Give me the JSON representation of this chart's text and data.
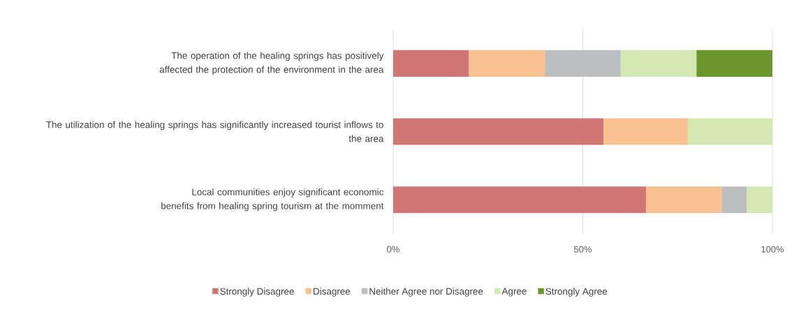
{
  "chart_data": {
    "type": "bar",
    "orientation": "horizontal",
    "stacked": true,
    "categories": [
      "The operation of the healing springs has positively affected the protection of the environment in the area",
      "The utilization of the healing springs has significantly increased tourist inflows to the area",
      "Local communities enjoy significant economic benefits from healing spring tourism at the momment"
    ],
    "series": [
      {
        "name": "Strongly Disagree",
        "color": "#d07674",
        "values": [
          20,
          55.5,
          66.7
        ]
      },
      {
        "name": "Disagree",
        "color": "#f9c090",
        "values": [
          20,
          22.2,
          20
        ]
      },
      {
        "name": "Neither Agree nor Disagree",
        "color": "#bdbec0",
        "values": [
          20,
          null,
          6.6
        ]
      },
      {
        "name": "Agree",
        "color": "#d3e8b3",
        "values": [
          20,
          22.3,
          6.7
        ]
      },
      {
        "name": "Strongly Agree",
        "color": "#6a962c",
        "values": [
          20,
          null,
          null
        ]
      }
    ],
    "xlim": [
      0,
      100
    ],
    "xticks": [
      {
        "value": 0,
        "label": "0%"
      },
      {
        "value": 50,
        "label": "50%"
      },
      {
        "value": 100,
        "label": "100%"
      }
    ],
    "grid": "x",
    "legend": "bottom"
  }
}
